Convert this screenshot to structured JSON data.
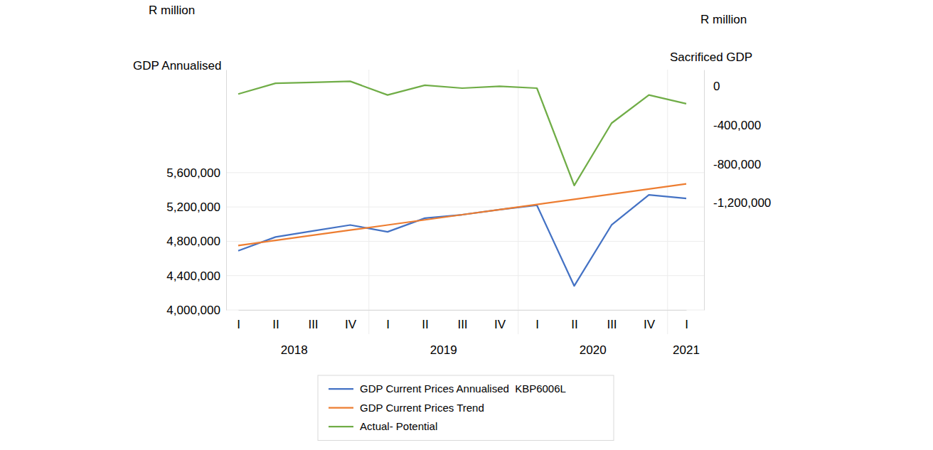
{
  "chart_data": {
    "type": "line",
    "y_unit": "R million",
    "y_label": "GDP Annualised",
    "y2_unit": "R million",
    "y2_label": "Sacrificed GDP",
    "categories": [
      "I",
      "II",
      "III",
      "IV",
      "I",
      "II",
      "III",
      "IV",
      "I",
      "II",
      "III",
      "IV",
      "I"
    ],
    "x_groups": [
      "2018",
      "2019",
      "2020",
      "2021"
    ],
    "series": [
      {
        "name": "GDP Current Prices Annualised  KBP6006L",
        "color": "#4472c4",
        "axis": "y",
        "values": [
          4690000,
          4850000,
          4920000,
          4990000,
          4910000,
          5070000,
          5110000,
          5170000,
          5220000,
          4280000,
          4990000,
          5340000,
          5300000
        ]
      },
      {
        "name": "GDP Current Prices Trend",
        "color": "#ed7d31",
        "axis": "y",
        "values": [
          4750000,
          4810000,
          4870000,
          4930000,
          4990000,
          5050000,
          5110000,
          5170000,
          5230000,
          5290000,
          5350000,
          5410000,
          5470000
        ]
      },
      {
        "name": "Actual- Potential",
        "color": "#70ad47",
        "axis": "y2",
        "values": [
          -80000,
          30000,
          40000,
          50000,
          -90000,
          10000,
          -20000,
          0,
          -20000,
          -1020000,
          -380000,
          -90000,
          -180000
        ]
      }
    ],
    "ylim": [
      4000000,
      6800000
    ],
    "yticks": [
      {
        "value": 4000000,
        "label": "4,000,000"
      },
      {
        "value": 4400000,
        "label": "4,400,000"
      },
      {
        "value": 4800000,
        "label": "4,800,000"
      },
      {
        "value": 5200000,
        "label": "5,200,000"
      },
      {
        "value": 5600000,
        "label": "5,600,000"
      }
    ],
    "y2lim": [
      -2300000,
      170000
    ],
    "y2ticks": [
      {
        "value": -1200000,
        "label": "-1,200,000"
      },
      {
        "value": -800000,
        "label": "-800,000"
      },
      {
        "value": -400000,
        "label": "-400,000"
      },
      0
    ],
    "grid": true,
    "legend": "bottom"
  }
}
